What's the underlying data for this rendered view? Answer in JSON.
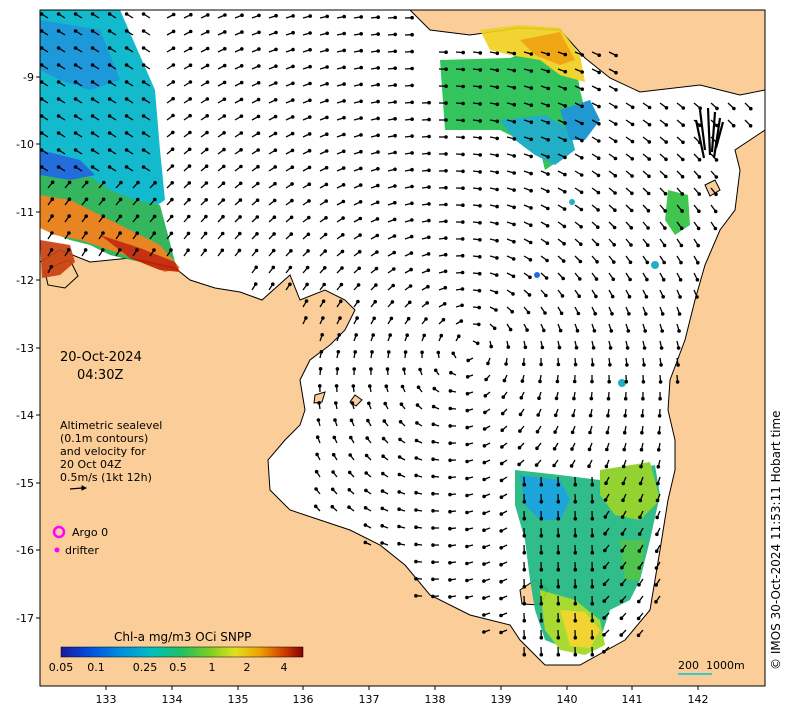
{
  "map": {
    "date_line": "20-Oct-2024",
    "time_line": "04:30Z",
    "sealevel_legend": {
      "lines": [
        "Altimetric sealevel",
        "(0.1m contours)",
        "and velocity for",
        "20 Oct 04Z",
        "0.5m/s (1kt 12h)"
      ]
    },
    "markers": {
      "argo_label": "Argo 0",
      "drifter_label": "drifter"
    },
    "colorbar": {
      "title": "Chl-a mg/m3 OCi SNPP",
      "tick_labels": [
        "0.05",
        "0.1",
        "0.25",
        "0.5",
        "1",
        "2",
        "4"
      ]
    },
    "scale_bar": {
      "label_small": "200",
      "label_large": "1000m"
    },
    "credit": "© IMOS 30-Oct-2024 11:53:11 Hobart time",
    "lon_ticks": [
      "133",
      "134",
      "135",
      "136",
      "137",
      "138",
      "139",
      "140",
      "141",
      "142"
    ],
    "lat_ticks": [
      "-9",
      "-10",
      "-11",
      "-12",
      "-13",
      "-14",
      "-15",
      "-16",
      "-17"
    ],
    "colors": {
      "land": "#fbcd98",
      "ocean": "#ffffff",
      "vector": "#000000",
      "marker": "#ff00ff",
      "scale_bar": "#3cc8c8"
    }
  }
}
